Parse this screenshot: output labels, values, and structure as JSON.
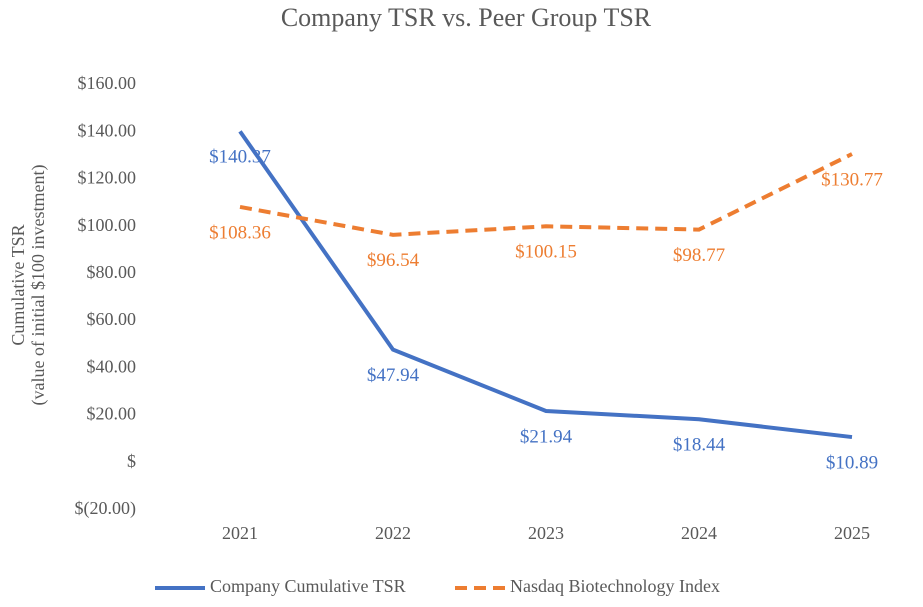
{
  "chart_data": {
    "type": "line",
    "title": "Company TSR vs. Peer Group TSR",
    "ylabel": [
      "Cumulative TSR",
      "(value of initial $100 investment)"
    ],
    "categories": [
      "2021",
      "2022",
      "2023",
      "2024",
      "2025"
    ],
    "series": [
      {
        "name": "Company Cumulative TSR",
        "color": "#4472c4",
        "dashed": false,
        "values": [
          140.37,
          47.94,
          21.94,
          18.44,
          10.89
        ],
        "value_labels": [
          "$140.37",
          "$47.94",
          "$21.94",
          "$18.44",
          "$10.89"
        ]
      },
      {
        "name": "Nasdaq Biotechnology Index",
        "color": "#ed7d31",
        "dashed": true,
        "values": [
          108.36,
          96.54,
          100.15,
          98.77,
          130.77
        ],
        "value_labels": [
          "$108.36",
          "$96.54",
          "$100.15",
          "$98.77",
          "$130.77"
        ]
      }
    ],
    "ylim": [
      -20,
      160
    ],
    "yticks": [
      {
        "value": -20,
        "label": "$(20.00)"
      },
      {
        "value": 0,
        "label": "$"
      },
      {
        "value": 20,
        "label": "$20.00"
      },
      {
        "value": 40,
        "label": "$40.00"
      },
      {
        "value": 60,
        "label": "$60.00"
      },
      {
        "value": 80,
        "label": "$80.00"
      },
      {
        "value": 100,
        "label": "$100.00"
      },
      {
        "value": 120,
        "label": "$120.00"
      },
      {
        "value": 140,
        "label": "$140.00"
      },
      {
        "value": 160,
        "label": "$160.00"
      }
    ],
    "grid": false,
    "legend": "bottom"
  }
}
